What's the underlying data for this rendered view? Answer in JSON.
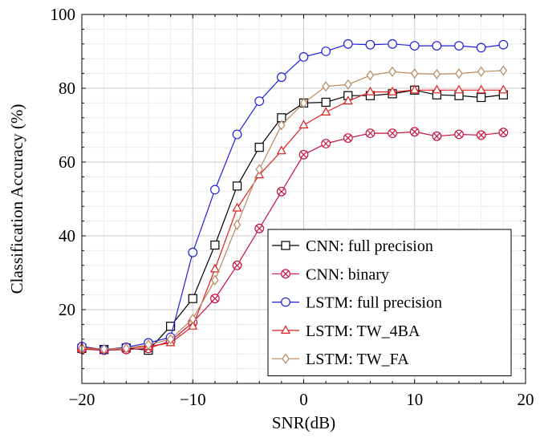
{
  "chart_data": {
    "type": "line",
    "title": "",
    "xlabel": "SNR(dB)",
    "ylabel": "Classification Accuracy (%)",
    "xlim": [
      -20,
      20
    ],
    "ylim": [
      0,
      100
    ],
    "x_ticks": [
      "−20",
      "−10",
      "0",
      "10",
      "20"
    ],
    "x_tick_values": [
      -20,
      -10,
      0,
      10,
      20
    ],
    "y_ticks": [
      "20",
      "40",
      "60",
      "80",
      "100"
    ],
    "y_tick_values": [
      20,
      40,
      60,
      80,
      100
    ],
    "grid": true,
    "legend_position": "bottom-right",
    "x": [
      -20,
      -18,
      -16,
      -14,
      -12,
      -10,
      -8,
      -6,
      -4,
      -2,
      0,
      2,
      4,
      6,
      8,
      10,
      12,
      14,
      16,
      18
    ],
    "series": [
      {
        "name": "CNN: full precision",
        "color": "#000000",
        "marker": "square",
        "values": [
          9.5,
          9.2,
          9.6,
          9.0,
          15.5,
          23.0,
          37.5,
          53.5,
          64.0,
          72.0,
          76.0,
          76.2,
          78.0,
          78.0,
          78.5,
          79.5,
          78.2,
          78.0,
          77.5,
          78.2
        ]
      },
      {
        "name": "CNN: binary",
        "color": "#c8103f",
        "marker": "circle-x",
        "values": [
          9.3,
          9.0,
          9.2,
          9.5,
          11.5,
          16.5,
          23.0,
          32.0,
          42.0,
          52.0,
          62.0,
          65.0,
          66.5,
          67.8,
          67.8,
          68.2,
          67.0,
          67.5,
          67.3,
          68.0
        ]
      },
      {
        "name": "LSTM: full precision",
        "color": "#1f1fe0",
        "marker": "circle",
        "values": [
          10.0,
          9.2,
          9.8,
          11.0,
          12.5,
          35.5,
          52.5,
          67.5,
          76.5,
          83.0,
          88.5,
          90.0,
          92.0,
          91.8,
          92.0,
          91.5,
          91.5,
          91.5,
          91.0,
          91.8
        ]
      },
      {
        "name": "LSTM: TW_4BA",
        "color": "#e02020",
        "marker": "triangle",
        "values": [
          9.8,
          9.2,
          9.6,
          10.0,
          11.0,
          15.5,
          31.0,
          47.5,
          56.5,
          63.0,
          70.0,
          73.5,
          76.5,
          79.0,
          79.0,
          79.5,
          79.5,
          79.5,
          79.5,
          79.5
        ]
      },
      {
        "name": "LSTM: TW_FA",
        "color": "#b8865a",
        "marker": "diamond",
        "values": [
          9.5,
          9.3,
          9.5,
          10.5,
          12.0,
          17.5,
          28.0,
          43.0,
          58.0,
          70.0,
          76.0,
          80.5,
          81.0,
          83.5,
          84.5,
          84.0,
          83.8,
          84.0,
          84.5,
          84.8
        ]
      }
    ]
  }
}
